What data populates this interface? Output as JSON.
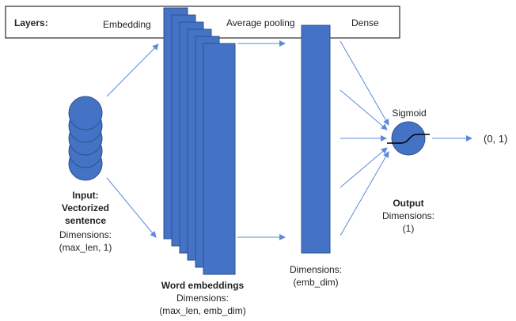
{
  "colors": {
    "block_fill": "#4472c4",
    "block_stroke": "#2f528f",
    "arrow": "#5b8bd6",
    "text": "#222222",
    "header_border": "#000000"
  },
  "header": {
    "title": "Layers:",
    "embedding": "Embedding",
    "pooling": "Average pooling",
    "dense": "Dense"
  },
  "input": {
    "title_line1": "Input:",
    "title_line2": "Vectorized",
    "title_line3": "sentence",
    "dims_label": "Dimensions:",
    "dims_value": "(max_len, 1)"
  },
  "embeddings": {
    "title": "Word embeddings",
    "dims_label": "Dimensions:",
    "dims_value": "(max_len, emb_dim)"
  },
  "pooling": {
    "dims_label": "Dimensions:",
    "dims_value": "(emb_dim)"
  },
  "output": {
    "node_label": "Sigmoid",
    "title": "Output",
    "dims_label": "Dimensions:",
    "dims_value": "(1)",
    "range": "(0, 1)"
  }
}
